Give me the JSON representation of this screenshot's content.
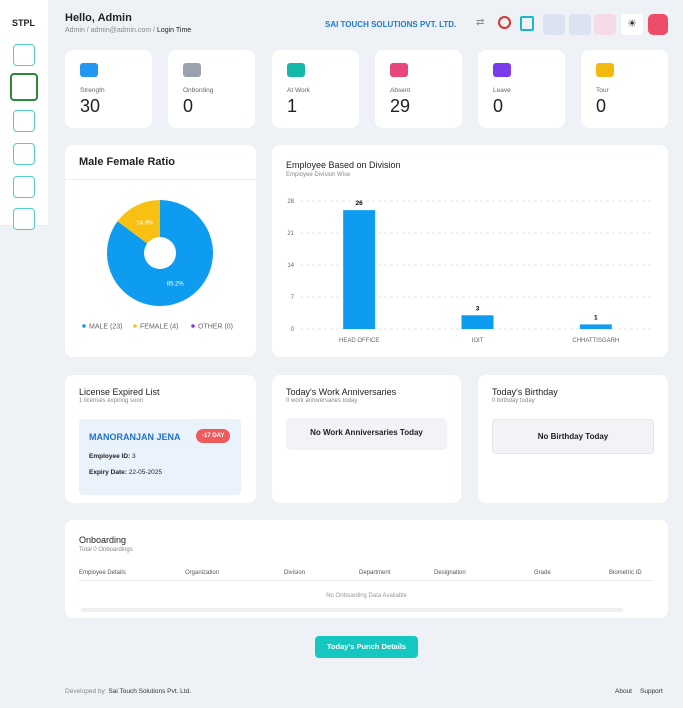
{
  "sidebar": {
    "logo": "STPL"
  },
  "header": {
    "greeting": "Hello, Admin",
    "breadcrumb": [
      "Admin",
      "admin@admin.com",
      "Login Time"
    ],
    "company": "SAI TOUCH SOLUTIONS PVT. LTD."
  },
  "stats": [
    {
      "label": "Strength",
      "value": 30
    },
    {
      "label": "Onbording",
      "value": 0
    },
    {
      "label": "At Work",
      "value": 1
    },
    {
      "label": "Absent",
      "value": 29
    },
    {
      "label": "Leave",
      "value": 0
    },
    {
      "label": "Tour",
      "value": 0
    }
  ],
  "chart_data": [
    {
      "type": "pie",
      "title": "Male Female Ratio",
      "categories": [
        "MALE (23)",
        "FEMALE (4)",
        "OTHER (0)"
      ],
      "values": [
        85.2,
        14.8,
        0
      ],
      "value_labels": [
        "85.2%",
        "14.8%",
        null
      ],
      "colors": [
        "#0d9cf0",
        "#f7c013",
        "#7c3aed"
      ]
    },
    {
      "type": "bar",
      "title": "Employee Based on Division",
      "subtitle": "Employee Division Wise",
      "categories": [
        "HEAD OFFICE",
        "IOIT",
        "CHHATTISGARH"
      ],
      "values": [
        26,
        3,
        1
      ],
      "color": "#0d9cf0",
      "ylim": [
        0,
        28
      ],
      "yticks": [
        0,
        7,
        14,
        21,
        28
      ],
      "grid": true
    }
  ],
  "license": {
    "title": "License Expired List",
    "subtitle": "1 licenses expiring soon",
    "name": "MANORANJAN JENA",
    "badge": "-17 DAY",
    "employee_id_label": "Employee ID:",
    "employee_id": "3",
    "expiry_label": "Expiry Date:",
    "expiry": "22-05-2025"
  },
  "anniversaries": {
    "title": "Today's Work Anniversaries",
    "subtitle": "0 work anniversaries today",
    "empty": "No Work Anniversaries Today"
  },
  "birthday": {
    "title": "Today's Birthday",
    "subtitle": "0 birthday today",
    "empty": "No Birthday Today"
  },
  "onboarding": {
    "title": "Onboarding",
    "subtitle": "Total 0 Onboardings",
    "columns": [
      "Employee Details",
      "Organization",
      "Division",
      "Department",
      "Designation",
      "Grade",
      "Biometric ID"
    ],
    "empty": "No Onboarding Data Available"
  },
  "button": "Today's Punch Details",
  "footer": {
    "developed_label": "Developed by:",
    "developer": "Sai Touch Solutions Pvt. Ltd.",
    "links": [
      "About",
      "Support"
    ]
  }
}
